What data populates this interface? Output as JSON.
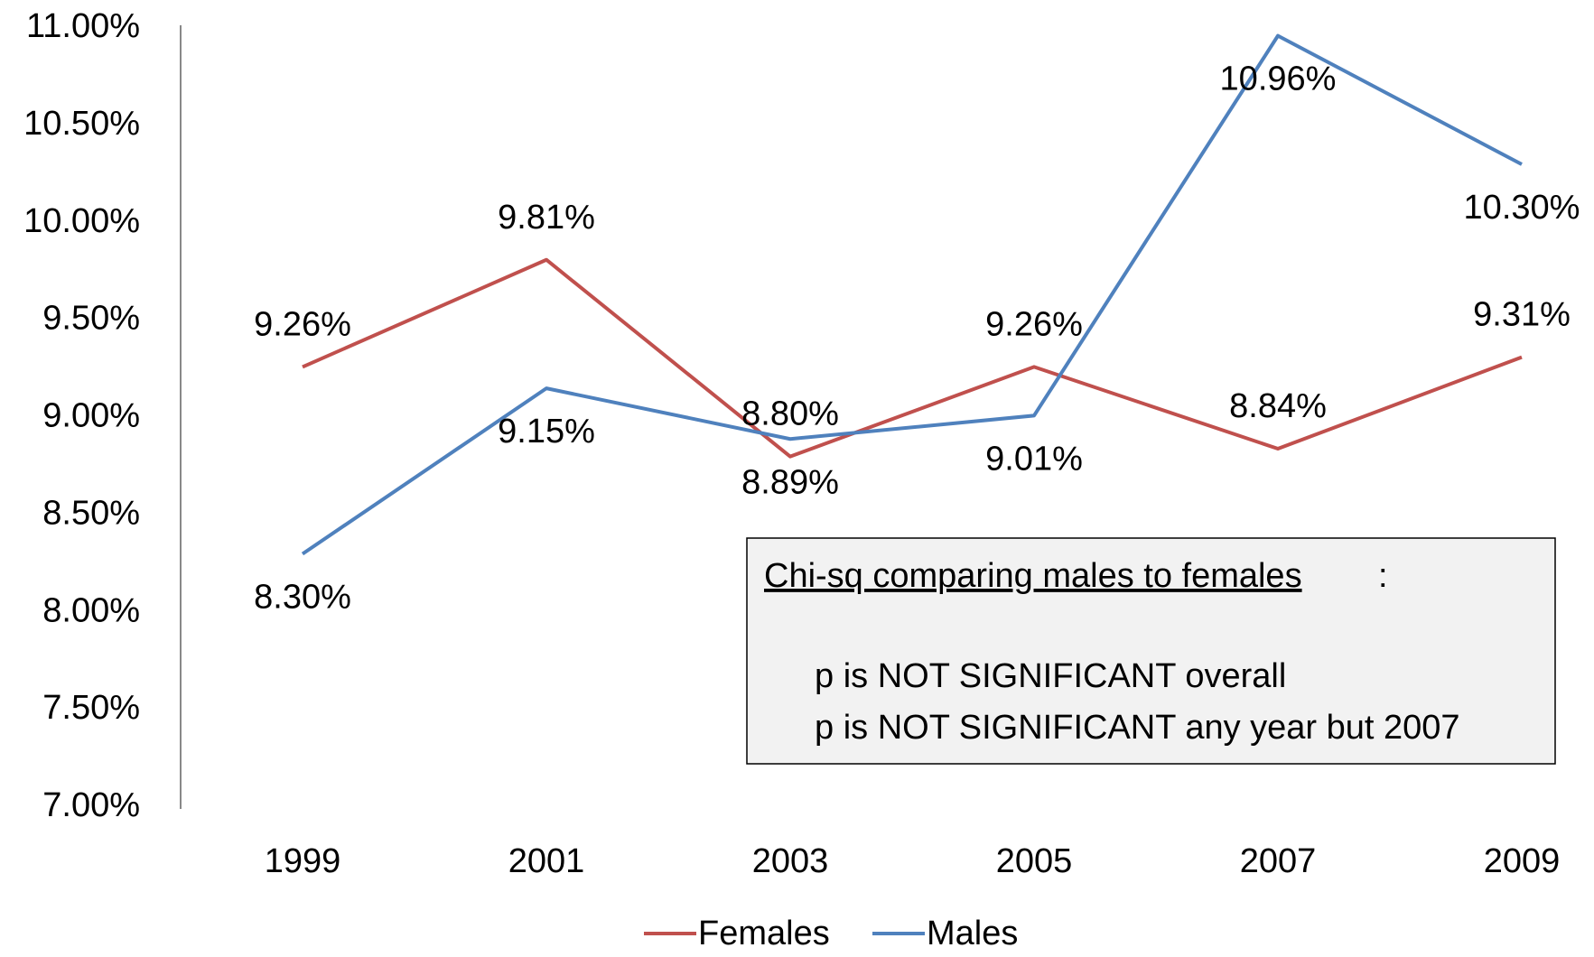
{
  "chart_data": {
    "type": "line",
    "categories": [
      "1999",
      "2001",
      "2003",
      "2005",
      "2007",
      "2009"
    ],
    "series": [
      {
        "name": "Females",
        "color": "#c0504d",
        "values": [
          9.26,
          9.81,
          8.8,
          9.26,
          8.84,
          9.31
        ],
        "value_labels": [
          "9.26%",
          "9.81%",
          "8.80%",
          "9.26%",
          "8.84%",
          "9.31%"
        ]
      },
      {
        "name": "Males",
        "color": "#4f81bd",
        "values": [
          8.3,
          9.15,
          8.89,
          9.01,
          10.96,
          10.3
        ],
        "value_labels": [
          "8.30%",
          "9.15%",
          "8.89%",
          "9.01%",
          "10.96%",
          "10.30%"
        ]
      }
    ],
    "ylim": [
      7,
      11
    ],
    "yticks": [
      {
        "value": 7,
        "label": "7.00%"
      },
      {
        "value": 7.5,
        "label": "7.50%"
      },
      {
        "value": 8,
        "label": "8.00%"
      },
      {
        "value": 8.5,
        "label": "8.50%"
      },
      {
        "value": 9,
        "label": "9.00%"
      },
      {
        "value": 9.5,
        "label": "9.50%"
      },
      {
        "value": 10,
        "label": "10.00%"
      },
      {
        "value": 10.5,
        "label": "10.50%"
      },
      {
        "value": 11,
        "label": "11.00%"
      }
    ],
    "grid": false,
    "legend": "bottom",
    "annotation": {
      "heading": "Chi-sq comparing males to females",
      "heading_suffix": ":",
      "lines": [
        "p is NOT SIGNIFICANT overall",
        "p is NOT SIGNIFICANT any year but 2007"
      ]
    }
  }
}
